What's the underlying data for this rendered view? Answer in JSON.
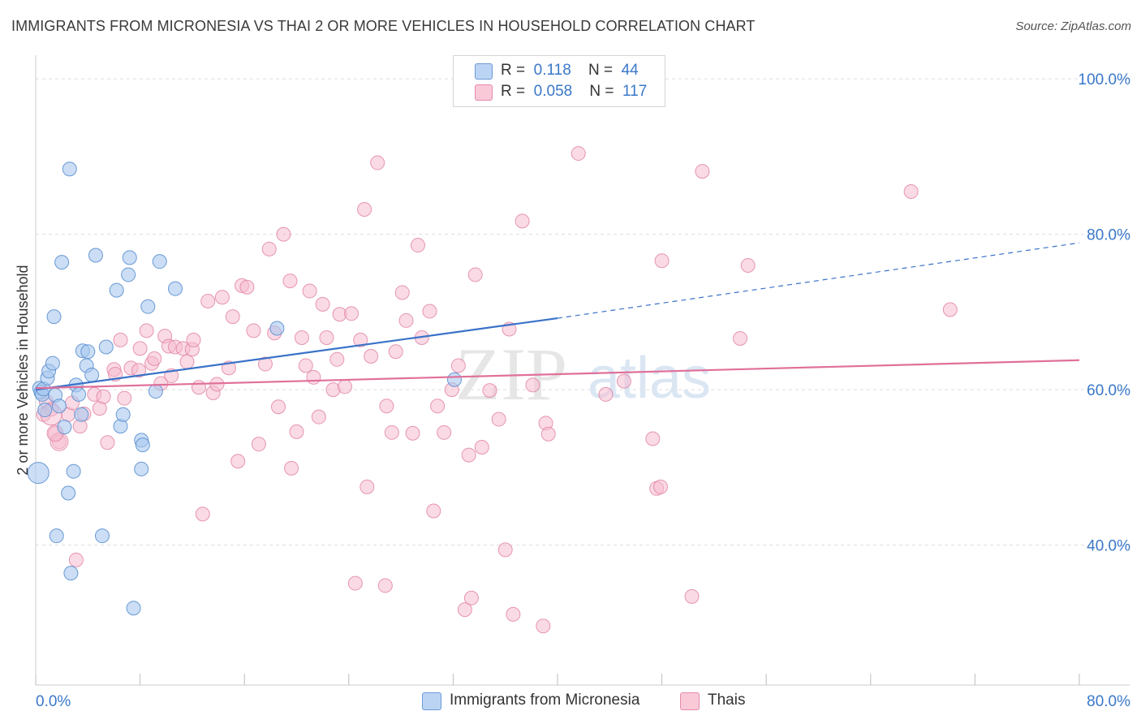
{
  "title": "IMMIGRANTS FROM MICRONESIA VS THAI 2 OR MORE VEHICLES IN HOUSEHOLD CORRELATION CHART",
  "source": "Source: ZipAtlas.com",
  "watermark": {
    "zip": "ZIP",
    "atlas": "atlas"
  },
  "legend": {
    "rows": [
      {
        "r_label": "R =",
        "r_value": "0.118",
        "n_label": "N =",
        "n_value": "44"
      },
      {
        "r_label": "R =",
        "r_value": "0.058",
        "n_label": "N =",
        "n_value": "117"
      }
    ]
  },
  "colors": {
    "blue_fill": "#a9c8ef",
    "blue_stroke": "#5b8fd0",
    "blue_line": "#3a72c9",
    "pink_fill": "#f6bcd0",
    "pink_stroke": "#e07fa1",
    "pink_line": "#e0709a",
    "grid": "#dddddd",
    "tick_label": "#3a78c9"
  },
  "chart_data": {
    "type": "scatter",
    "title": "IMMIGRANTS FROM MICRONESIA VS THAI 2 OR MORE VEHICLES IN HOUSEHOLD CORRELATION CHART",
    "xlabel": "",
    "ylabel": "2 or more Vehicles in Household",
    "xlim": [
      0,
      80
    ],
    "ylim": [
      22,
      102
    ],
    "x_tick_labels": [
      "0.0%",
      "80.0%"
    ],
    "y_ticks": [
      40,
      60,
      80,
      100
    ],
    "y_tick_labels": [
      "40.0%",
      "60.0%",
      "80.0%",
      "100.0%"
    ],
    "grid": true,
    "legend_position": "top-center",
    "series": [
      {
        "name": "Immigrants from Micronesia",
        "r": 0.118,
        "n": 44,
        "trend": {
          "x0": 0,
          "y0": 60.0,
          "x1": 40,
          "y1": 69.2,
          "dashed_to_x": 80,
          "dashed_to_y": 78.9
        },
        "points": [
          [
            0.2,
            49.3
          ],
          [
            0.3,
            60.2
          ],
          [
            0.4,
            59.7
          ],
          [
            0.5,
            59.4
          ],
          [
            0.6,
            60.1
          ],
          [
            0.7,
            57.4
          ],
          [
            0.9,
            61.5
          ],
          [
            1.0,
            62.4
          ],
          [
            1.3,
            63.4
          ],
          [
            1.4,
            69.4
          ],
          [
            1.5,
            59.3
          ],
          [
            1.6,
            41.2
          ],
          [
            1.8,
            57.9
          ],
          [
            2.0,
            76.4
          ],
          [
            2.2,
            55.2
          ],
          [
            2.5,
            46.7
          ],
          [
            2.6,
            88.4
          ],
          [
            2.7,
            36.4
          ],
          [
            2.9,
            49.5
          ],
          [
            3.1,
            60.6
          ],
          [
            3.3,
            59.4
          ],
          [
            3.5,
            56.8
          ],
          [
            3.6,
            65.0
          ],
          [
            3.9,
            63.1
          ],
          [
            4.0,
            64.9
          ],
          [
            4.3,
            61.9
          ],
          [
            4.6,
            77.3
          ],
          [
            5.1,
            41.2
          ],
          [
            5.4,
            65.5
          ],
          [
            6.2,
            72.8
          ],
          [
            6.5,
            55.3
          ],
          [
            6.7,
            56.8
          ],
          [
            7.1,
            74.8
          ],
          [
            7.2,
            77.0
          ],
          [
            7.5,
            31.9
          ],
          [
            8.1,
            53.5
          ],
          [
            8.1,
            49.8
          ],
          [
            8.2,
            52.9
          ],
          [
            8.6,
            70.7
          ],
          [
            9.2,
            59.8
          ],
          [
            9.5,
            76.5
          ],
          [
            10.7,
            73.0
          ],
          [
            18.5,
            67.9
          ],
          [
            32.1,
            61.3
          ]
        ]
      },
      {
        "name": "Thais",
        "r": 0.058,
        "n": 117,
        "trend": {
          "x0": 0,
          "y0": 60.2,
          "x1": 80,
          "y1": 63.8
        },
        "points": [
          [
            0.6,
            56.8
          ],
          [
            0.8,
            58.5
          ],
          [
            1.2,
            57.5
          ],
          [
            1.5,
            54.4
          ],
          [
            1.8,
            53.3
          ],
          [
            2.5,
            56.8
          ],
          [
            2.8,
            58.3
          ],
          [
            3.1,
            38.1
          ],
          [
            3.4,
            55.3
          ],
          [
            3.7,
            56.9
          ],
          [
            4.5,
            59.4
          ],
          [
            4.9,
            57.6
          ],
          [
            5.2,
            59.1
          ],
          [
            5.5,
            53.2
          ],
          [
            6.0,
            62.6
          ],
          [
            6.1,
            62.0
          ],
          [
            6.5,
            66.4
          ],
          [
            6.8,
            58.9
          ],
          [
            7.3,
            62.8
          ],
          [
            7.9,
            62.5
          ],
          [
            8.0,
            65.3
          ],
          [
            8.5,
            67.6
          ],
          [
            8.9,
            63.4
          ],
          [
            9.1,
            64.0
          ],
          [
            9.6,
            60.8
          ],
          [
            9.9,
            66.9
          ],
          [
            10.2,
            65.6
          ],
          [
            10.4,
            61.8
          ],
          [
            10.7,
            65.5
          ],
          [
            11.3,
            65.3
          ],
          [
            11.6,
            63.6
          ],
          [
            12.0,
            65.2
          ],
          [
            12.1,
            66.4
          ],
          [
            12.5,
            60.3
          ],
          [
            12.8,
            44.0
          ],
          [
            13.2,
            71.4
          ],
          [
            13.6,
            59.6
          ],
          [
            13.9,
            60.7
          ],
          [
            14.3,
            71.9
          ],
          [
            14.8,
            62.8
          ],
          [
            15.1,
            69.4
          ],
          [
            15.5,
            50.8
          ],
          [
            15.8,
            73.4
          ],
          [
            16.2,
            73.2
          ],
          [
            16.7,
            67.6
          ],
          [
            17.1,
            53.0
          ],
          [
            17.6,
            63.3
          ],
          [
            17.9,
            78.1
          ],
          [
            18.3,
            67.3
          ],
          [
            18.6,
            57.8
          ],
          [
            19.0,
            80.0
          ],
          [
            19.5,
            74.0
          ],
          [
            19.6,
            49.9
          ],
          [
            20.0,
            54.6
          ],
          [
            20.4,
            66.7
          ],
          [
            20.7,
            63.1
          ],
          [
            21.0,
            72.7
          ],
          [
            21.3,
            61.6
          ],
          [
            21.7,
            56.5
          ],
          [
            22.0,
            71.0
          ],
          [
            22.3,
            66.7
          ],
          [
            22.8,
            60.0
          ],
          [
            23.1,
            63.9
          ],
          [
            23.3,
            69.7
          ],
          [
            23.7,
            60.4
          ],
          [
            24.2,
            69.8
          ],
          [
            24.5,
            35.1
          ],
          [
            24.9,
            66.4
          ],
          [
            25.2,
            83.2
          ],
          [
            25.4,
            47.5
          ],
          [
            25.7,
            64.3
          ],
          [
            26.2,
            89.2
          ],
          [
            26.8,
            34.8
          ],
          [
            26.9,
            57.9
          ],
          [
            27.3,
            54.5
          ],
          [
            27.6,
            64.9
          ],
          [
            28.1,
            72.5
          ],
          [
            28.4,
            68.9
          ],
          [
            28.9,
            54.4
          ],
          [
            29.3,
            78.6
          ],
          [
            29.6,
            66.7
          ],
          [
            30.2,
            70.1
          ],
          [
            30.5,
            44.4
          ],
          [
            30.8,
            57.9
          ],
          [
            31.3,
            54.5
          ],
          [
            31.9,
            60.0
          ],
          [
            32.4,
            63.1
          ],
          [
            32.9,
            31.7
          ],
          [
            33.2,
            51.6
          ],
          [
            33.4,
            33.2
          ],
          [
            33.7,
            74.8
          ],
          [
            34.2,
            52.6
          ],
          [
            34.8,
            59.9
          ],
          [
            35.5,
            56.2
          ],
          [
            36.0,
            39.4
          ],
          [
            36.3,
            67.8
          ],
          [
            36.6,
            31.1
          ],
          [
            37.3,
            81.7
          ],
          [
            38.1,
            60.6
          ],
          [
            38.9,
            29.6
          ],
          [
            39.1,
            55.7
          ],
          [
            39.3,
            54.3
          ],
          [
            41.6,
            90.4
          ],
          [
            43.7,
            59.4
          ],
          [
            45.1,
            61.1
          ],
          [
            47.3,
            53.7
          ],
          [
            47.6,
            47.3
          ],
          [
            47.9,
            47.5
          ],
          [
            48.0,
            76.6
          ],
          [
            50.3,
            33.4
          ],
          [
            51.1,
            88.1
          ],
          [
            54.0,
            66.6
          ],
          [
            54.6,
            76.0
          ],
          [
            67.1,
            85.5
          ],
          [
            70.1,
            70.3
          ]
        ]
      }
    ]
  },
  "axes": {
    "ylabel": "2 or more Vehicles in Household",
    "x_min_label": "0.0%",
    "x_max_label": "80.0%"
  },
  "bottom_legend": [
    {
      "label": "Immigrants from Micronesia"
    },
    {
      "label": "Thais"
    }
  ]
}
